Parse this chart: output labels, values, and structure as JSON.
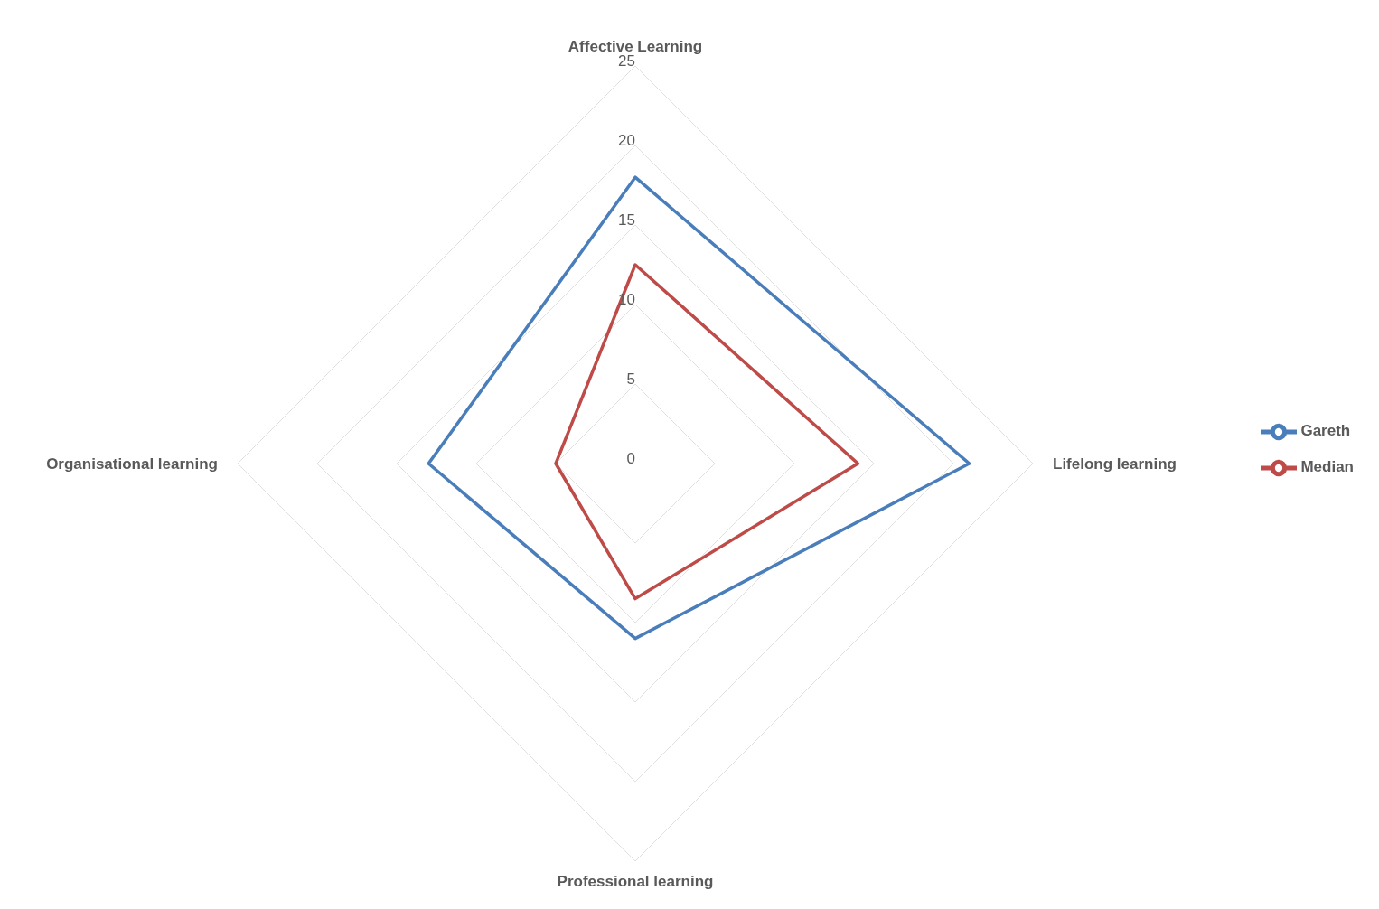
{
  "chart_data": {
    "type": "radar",
    "categories": [
      "Affective Learning",
      "Lifelong learning",
      "Professional learning",
      "Organisational learning"
    ],
    "series": [
      {
        "name": "Gareth",
        "color": "#4a7ebb",
        "values": [
          18,
          21,
          11,
          13
        ]
      },
      {
        "name": "Median",
        "color": "#be4b48",
        "values": [
          12.5,
          14,
          8.5,
          5
        ]
      }
    ],
    "ylim": [
      0,
      25
    ],
    "yticks": [
      0,
      5,
      10,
      15,
      20,
      25
    ],
    "grid": true,
    "legend": "right",
    "marker": "none"
  }
}
